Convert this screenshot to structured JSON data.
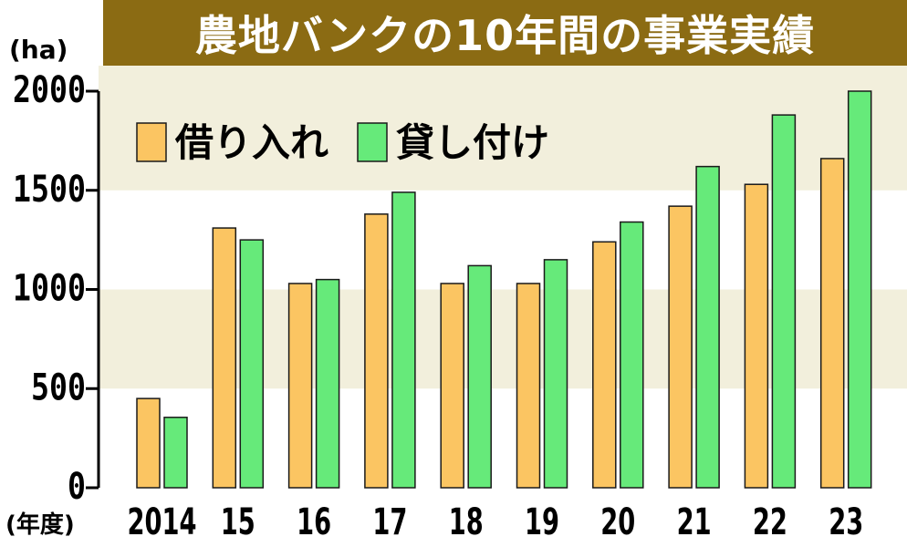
{
  "title": "農地バンクの10年間の事業実績",
  "unit_label": "(ha)",
  "x_axis_label": "(年度)",
  "colors": {
    "title_bg": "#8b6b13",
    "band": "#f2efdc",
    "borrow": "#fbc562",
    "lend": "#66ea7a",
    "bar_stroke": "#1a1a1a"
  },
  "chart_data": {
    "type": "bar",
    "categories": [
      "2014",
      "15",
      "16",
      "17",
      "18",
      "19",
      "20",
      "21",
      "22",
      "23"
    ],
    "series": [
      {
        "name": "借り入れ",
        "values": [
          450,
          1310,
          1030,
          1380,
          1030,
          1030,
          1240,
          1420,
          1530,
          1660
        ]
      },
      {
        "name": "貸し付け",
        "values": [
          355,
          1250,
          1050,
          1490,
          1120,
          1150,
          1340,
          1620,
          1880,
          2000
        ]
      }
    ],
    "yticks": [
      0,
      500,
      1000,
      1500,
      2000
    ],
    "ylim": [
      0,
      2000
    ],
    "legend_position": "top-left",
    "grid": "alternating-bands"
  }
}
